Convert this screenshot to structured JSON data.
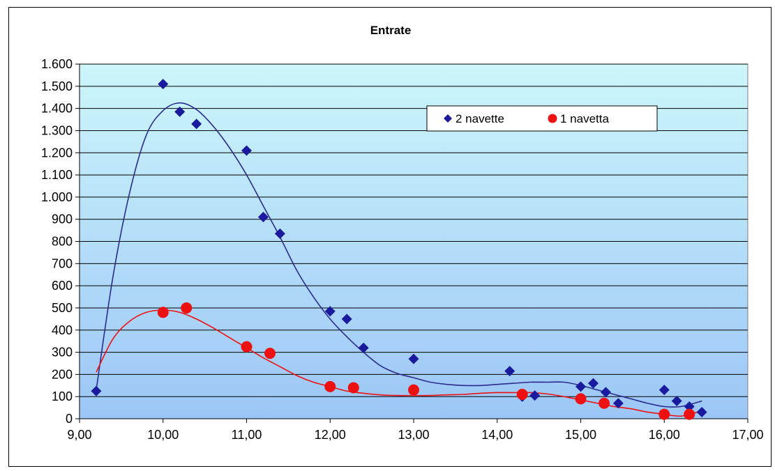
{
  "chart_data": {
    "type": "scatter",
    "title": "Entrate",
    "xlabel": "",
    "ylabel": "",
    "xlim": [
      9,
      17
    ],
    "ylim": [
      0,
      1600
    ],
    "x_ticks": [
      9,
      10,
      11,
      12,
      13,
      14,
      15,
      16,
      17
    ],
    "x_tick_labels": [
      "9,00",
      "10,00",
      "11,00",
      "12,00",
      "13,00",
      "14,00",
      "15,00",
      "16,00",
      "17,00"
    ],
    "y_ticks": [
      0,
      100,
      200,
      300,
      400,
      500,
      600,
      700,
      800,
      900,
      1000,
      1100,
      1200,
      1300,
      1400,
      1500,
      1600
    ],
    "y_tick_labels": [
      "0",
      "100",
      "200",
      "300",
      "400",
      "500",
      "600",
      "700",
      "800",
      "900",
      "1.000",
      "1.100",
      "1.200",
      "1.300",
      "1.400",
      "1.500",
      "1.600"
    ],
    "grid": true,
    "legend_position": "upper-right",
    "series": [
      {
        "name": "2 navette",
        "marker": "diamond",
        "color": "#1a1a9e",
        "trend_color": "#2b2b8f",
        "x": [
          9.2,
          10.0,
          10.2,
          10.4,
          11.0,
          11.2,
          11.4,
          12.0,
          12.2,
          12.4,
          13.0,
          14.15,
          14.3,
          14.45,
          15.0,
          15.15,
          15.3,
          15.45,
          16.0,
          16.15,
          16.3,
          16.45
        ],
        "y": [
          125,
          1510,
          1385,
          1330,
          1210,
          910,
          835,
          485,
          450,
          320,
          270,
          215,
          100,
          105,
          145,
          160,
          120,
          70,
          130,
          80,
          55,
          30
        ],
        "trend_x": [
          9.2,
          9.4,
          9.6,
          9.8,
          10.0,
          10.2,
          10.4,
          10.6,
          10.8,
          11.0,
          11.2,
          11.4,
          11.6,
          11.8,
          12.0,
          12.2,
          12.4,
          12.6,
          12.8,
          13.0,
          13.2,
          13.4,
          13.6,
          13.8,
          14.0,
          14.2,
          14.4,
          14.6,
          14.8,
          15.0,
          15.2,
          15.4,
          15.6,
          15.8,
          16.0,
          16.2,
          16.45
        ],
        "trend_y": [
          130,
          640,
          1020,
          1280,
          1390,
          1425,
          1395,
          1320,
          1220,
          1100,
          960,
          820,
          670,
          550,
          450,
          370,
          300,
          240,
          205,
          185,
          165,
          155,
          150,
          150,
          155,
          160,
          165,
          165,
          165,
          150,
          130,
          110,
          90,
          70,
          55,
          55,
          80
        ]
      },
      {
        "name": "1 navetta",
        "marker": "circle",
        "color": "#ee1111",
        "trend_color": "#ee1111",
        "x": [
          10.0,
          10.28,
          11.0,
          11.28,
          12.0,
          12.28,
          13.0,
          14.3,
          15.0,
          15.28,
          16.0,
          16.3
        ],
        "y": [
          480,
          500,
          325,
          295,
          145,
          140,
          130,
          110,
          90,
          70,
          20,
          20
        ],
        "trend_x": [
          9.2,
          9.4,
          9.6,
          9.8,
          10.0,
          10.2,
          10.4,
          10.6,
          10.8,
          11.0,
          11.2,
          11.4,
          11.6,
          11.8,
          12.0,
          12.2,
          12.4,
          12.6,
          12.8,
          13.0,
          13.2,
          13.4,
          13.6,
          13.8,
          14.0,
          14.2,
          14.4,
          14.6,
          14.8,
          15.0,
          15.2,
          15.4,
          15.6,
          15.8,
          16.0,
          16.2,
          16.4
        ],
        "trend_y": [
          210,
          360,
          440,
          480,
          490,
          480,
          450,
          410,
          365,
          320,
          275,
          235,
          195,
          165,
          145,
          125,
          115,
          108,
          105,
          105,
          105,
          108,
          110,
          115,
          118,
          118,
          118,
          112,
          100,
          85,
          70,
          55,
          45,
          30,
          20,
          12,
          30
        ]
      }
    ]
  }
}
